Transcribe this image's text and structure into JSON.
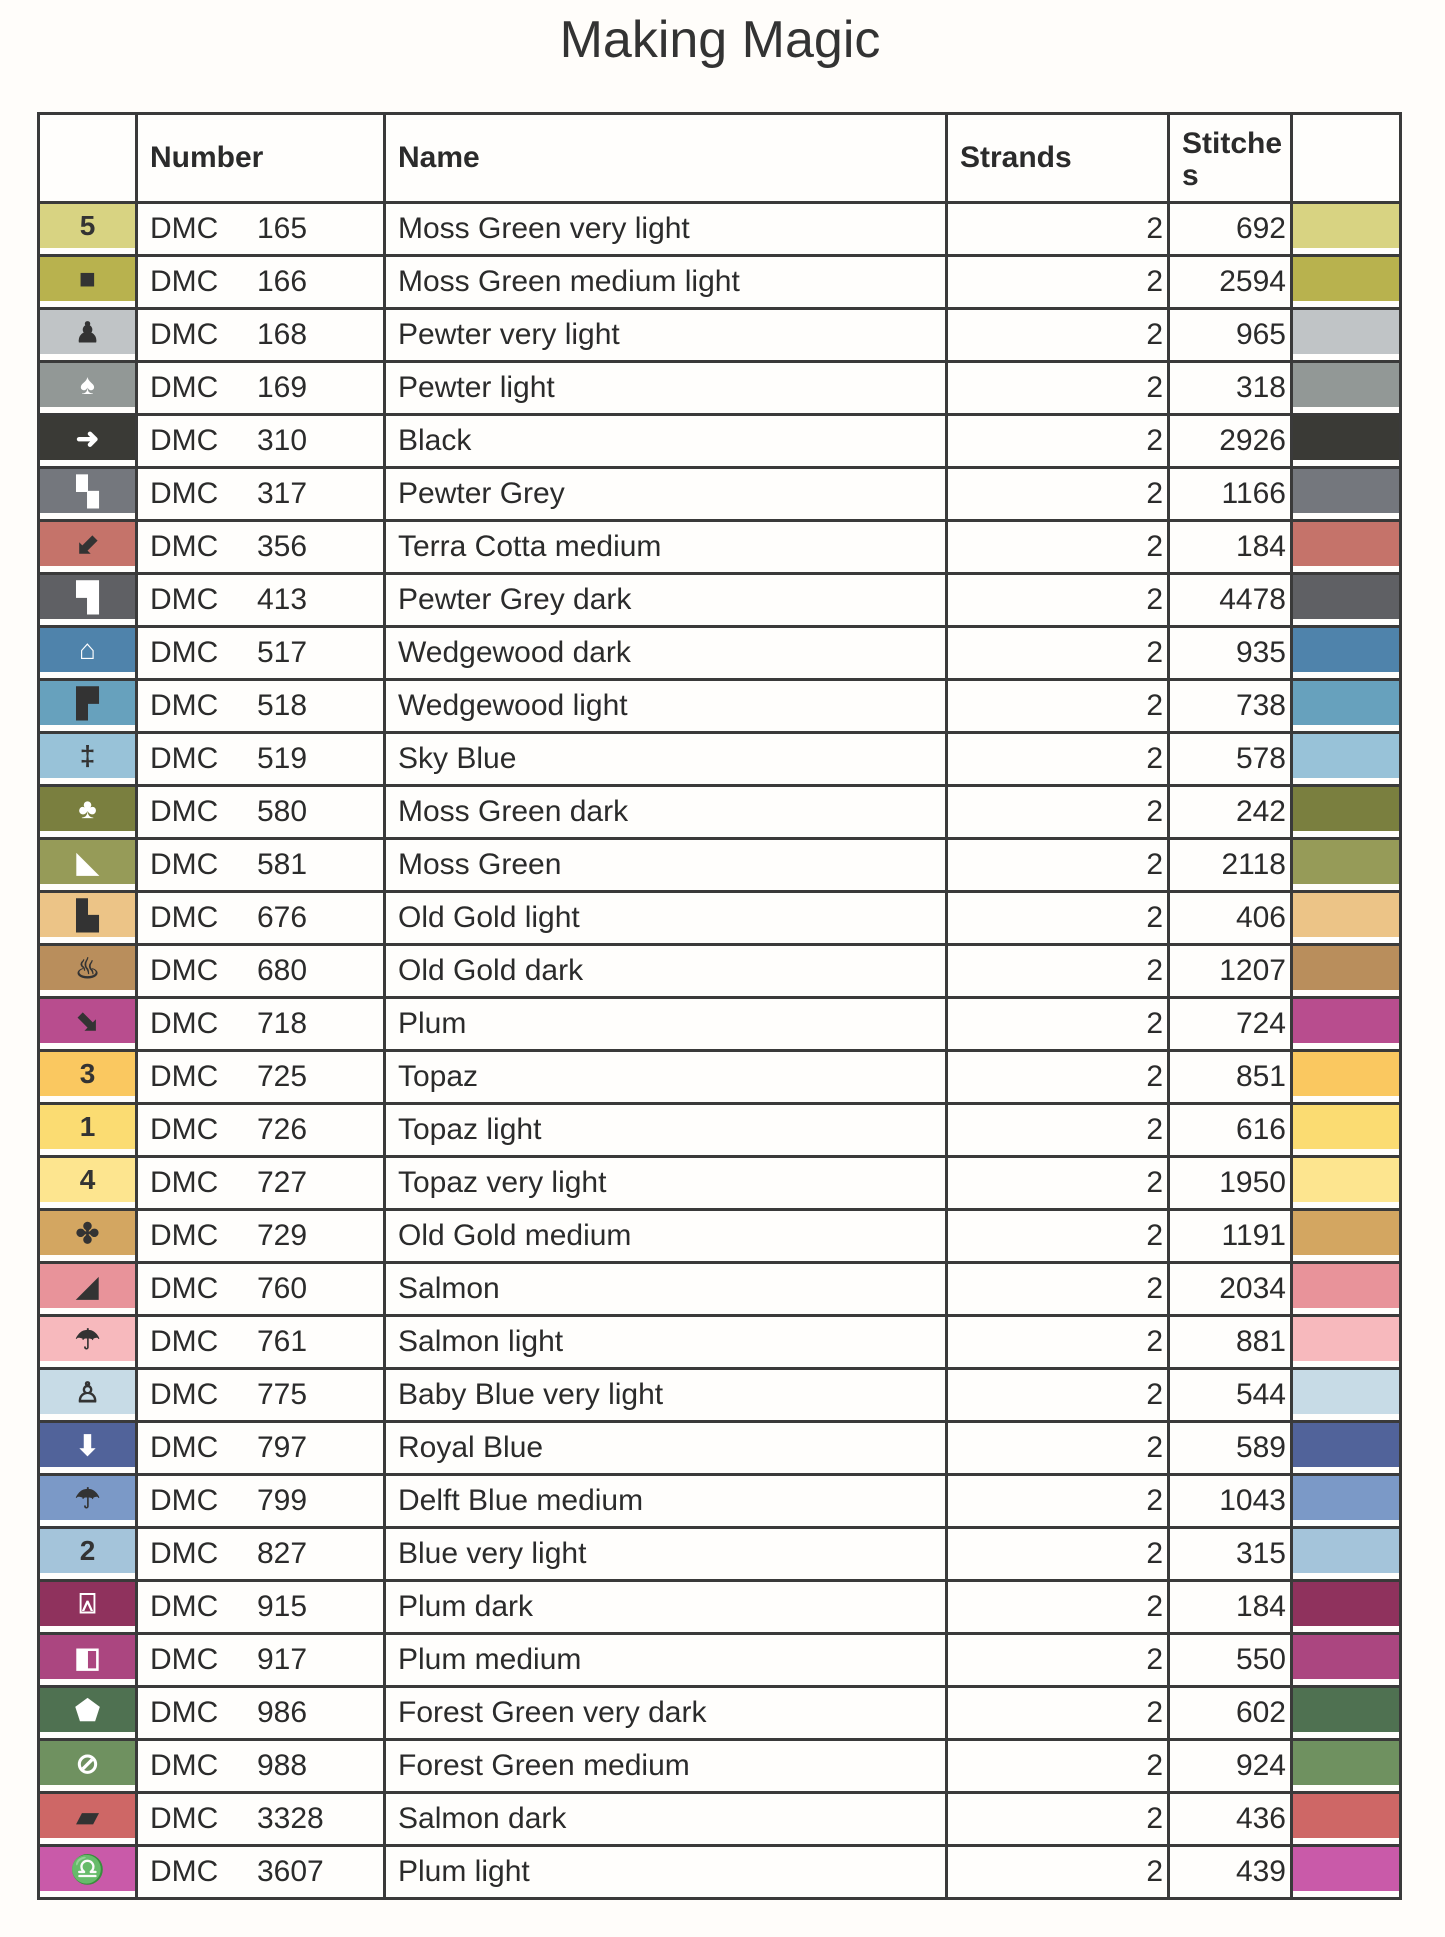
{
  "title": "Making Magic",
  "headers": {
    "symbol": "",
    "number": "Number",
    "name": "Name",
    "strands": "Strands",
    "stitches": "Stitches",
    "color": ""
  },
  "rows": [
    {
      "symbol": "5",
      "brand": "DMC",
      "code": "165",
      "name": "Moss Green very light",
      "strands": "2",
      "stitches": "692",
      "color": "#d8d382",
      "symbol_color": "#333"
    },
    {
      "symbol": "■",
      "brand": "DMC",
      "code": "166",
      "name": "Moss Green medium light",
      "strands": "2",
      "stitches": "2594",
      "color": "#b8b24e",
      "symbol_color": "#333"
    },
    {
      "symbol": "♟",
      "brand": "DMC",
      "code": "168",
      "name": "Pewter very light",
      "strands": "2",
      "stitches": "965",
      "color": "#c0c4c6",
      "symbol_color": "#333"
    },
    {
      "symbol": "♠",
      "brand": "DMC",
      "code": "169",
      "name": "Pewter light",
      "strands": "2",
      "stitches": "318",
      "color": "#929896",
      "symbol_color": "#fff"
    },
    {
      "symbol": "➜",
      "brand": "DMC",
      "code": "310",
      "name": "Black",
      "strands": "2",
      "stitches": "2926",
      "color": "#3a3a36",
      "symbol_color": "#fff"
    },
    {
      "symbol": "▚",
      "brand": "DMC",
      "code": "317",
      "name": "Pewter Grey",
      "strands": "2",
      "stitches": "1166",
      "color": "#74777d",
      "symbol_color": "#fff"
    },
    {
      "symbol": "⬋",
      "brand": "DMC",
      "code": "356",
      "name": "Terra Cotta medium",
      "strands": "2",
      "stitches": "184",
      "color": "#c5736a",
      "symbol_color": "#333"
    },
    {
      "symbol": "▜",
      "brand": "DMC",
      "code": "413",
      "name": "Pewter Grey dark",
      "strands": "2",
      "stitches": "4478",
      "color": "#5f6064",
      "symbol_color": "#fff"
    },
    {
      "symbol": "⌂",
      "brand": "DMC",
      "code": "517",
      "name": "Wedgewood dark",
      "strands": "2",
      "stitches": "935",
      "color": "#4f83ab",
      "symbol_color": "#fff"
    },
    {
      "symbol": "▛",
      "brand": "DMC",
      "code": "518",
      "name": "Wedgewood light",
      "strands": "2",
      "stitches": "738",
      "color": "#67a1bd",
      "symbol_color": "#333"
    },
    {
      "symbol": "‡",
      "brand": "DMC",
      "code": "519",
      "name": "Sky Blue",
      "strands": "2",
      "stitches": "578",
      "color": "#98c2d8",
      "symbol_color": "#333"
    },
    {
      "symbol": "♣",
      "brand": "DMC",
      "code": "580",
      "name": "Moss Green dark",
      "strands": "2",
      "stitches": "242",
      "color": "#7a7f3f",
      "symbol_color": "#fff"
    },
    {
      "symbol": "◣",
      "brand": "DMC",
      "code": "581",
      "name": "Moss Green",
      "strands": "2",
      "stitches": "2118",
      "color": "#969b58",
      "symbol_color": "#fff"
    },
    {
      "symbol": "▙",
      "brand": "DMC",
      "code": "676",
      "name": "Old Gold light",
      "strands": "2",
      "stitches": "406",
      "color": "#ecc487",
      "symbol_color": "#333"
    },
    {
      "symbol": "♨",
      "brand": "DMC",
      "code": "680",
      "name": "Old Gold dark",
      "strands": "2",
      "stitches": "1207",
      "color": "#b98e5c",
      "symbol_color": "#333"
    },
    {
      "symbol": "⬊",
      "brand": "DMC",
      "code": "718",
      "name": "Plum",
      "strands": "2",
      "stitches": "724",
      "color": "#b84d8e",
      "symbol_color": "#333"
    },
    {
      "symbol": "3",
      "brand": "DMC",
      "code": "725",
      "name": "Topaz",
      "strands": "2",
      "stitches": "851",
      "color": "#fac860",
      "symbol_color": "#333"
    },
    {
      "symbol": "1",
      "brand": "DMC",
      "code": "726",
      "name": "Topaz light",
      "strands": "2",
      "stitches": "616",
      "color": "#fbdc72",
      "symbol_color": "#333"
    },
    {
      "symbol": "4",
      "brand": "DMC",
      "code": "727",
      "name": "Topaz very light",
      "strands": "2",
      "stitches": "1950",
      "color": "#fde58f",
      "symbol_color": "#333"
    },
    {
      "symbol": "✤",
      "brand": "DMC",
      "code": "729",
      "name": "Old Gold medium",
      "strands": "2",
      "stitches": "1191",
      "color": "#d3a661",
      "symbol_color": "#333"
    },
    {
      "symbol": "◢",
      "brand": "DMC",
      "code": "760",
      "name": "Salmon",
      "strands": "2",
      "stitches": "2034",
      "color": "#e8939a",
      "symbol_color": "#333"
    },
    {
      "symbol": "☂",
      "brand": "DMC",
      "code": "761",
      "name": "Salmon light",
      "strands": "2",
      "stitches": "881",
      "color": "#f7b9bd",
      "symbol_color": "#333"
    },
    {
      "symbol": "♙",
      "brand": "DMC",
      "code": "775",
      "name": "Baby Blue very light",
      "strands": "2",
      "stitches": "544",
      "color": "#c7dbe6",
      "symbol_color": "#333"
    },
    {
      "symbol": "⬇",
      "brand": "DMC",
      "code": "797",
      "name": "Royal Blue",
      "strands": "2",
      "stitches": "589",
      "color": "#51639a",
      "symbol_color": "#fff"
    },
    {
      "symbol": "☂",
      "brand": "DMC",
      "code": "799",
      "name": "Delft Blue medium",
      "strands": "2",
      "stitches": "1043",
      "color": "#7b99c7",
      "symbol_color": "#333"
    },
    {
      "symbol": "2",
      "brand": "DMC",
      "code": "827",
      "name": "Blue very light",
      "strands": "2",
      "stitches": "315",
      "color": "#a4c4da",
      "symbol_color": "#333"
    },
    {
      "symbol": "⍓",
      "brand": "DMC",
      "code": "915",
      "name": "Plum dark",
      "strands": "2",
      "stitches": "184",
      "color": "#8f325d",
      "symbol_color": "#fff"
    },
    {
      "symbol": "◧",
      "brand": "DMC",
      "code": "917",
      "name": "Plum medium",
      "strands": "2",
      "stitches": "550",
      "color": "#ab4680",
      "symbol_color": "#fff"
    },
    {
      "symbol": "⬟",
      "brand": "DMC",
      "code": "986",
      "name": "Forest Green very dark",
      "strands": "2",
      "stitches": "602",
      "color": "#4f7151",
      "symbol_color": "#fff"
    },
    {
      "symbol": "⊘",
      "brand": "DMC",
      "code": "988",
      "name": "Forest Green medium",
      "strands": "2",
      "stitches": "924",
      "color": "#6f9160",
      "symbol_color": "#fff"
    },
    {
      "symbol": "▰",
      "brand": "DMC",
      "code": "3328",
      "name": "Salmon dark",
      "strands": "2",
      "stitches": "436",
      "color": "#ce6766",
      "symbol_color": "#333"
    },
    {
      "symbol": "♎",
      "brand": "DMC",
      "code": "3607",
      "name": "Plum light",
      "strands": "2",
      "stitches": "439",
      "color": "#c95aa9",
      "symbol_color": "#333"
    }
  ]
}
